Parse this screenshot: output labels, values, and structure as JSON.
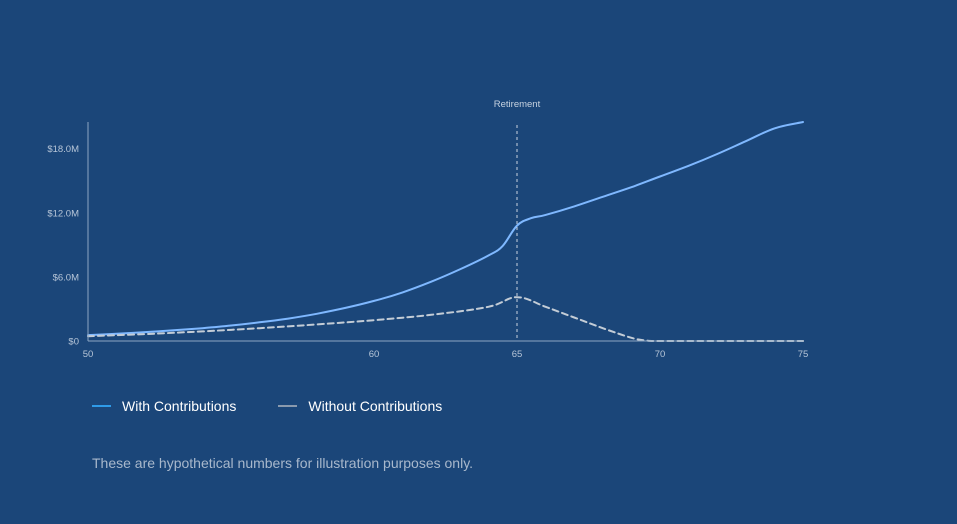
{
  "colors": {
    "background": "#1b4679",
    "with_contributions": "#7fb8ff",
    "without_contributions": "#c3ccd6",
    "axis": "#8ea7c4",
    "legend_with": "#2f9be8",
    "legend_without": "#8a9aae"
  },
  "legend": {
    "with_label": "With Contributions",
    "without_label": "Without Contributions"
  },
  "footnote": "These are hypothetical numbers for illustration purposes only.",
  "chart_data": {
    "type": "line",
    "title": "",
    "xlabel": "",
    "ylabel": "",
    "xlim": [
      50,
      75
    ],
    "ylim": [
      0,
      20.5
    ],
    "x_ticks": [
      50,
      60,
      65,
      70,
      75
    ],
    "x_tick_labels": [
      "50",
      "60",
      "65",
      "70",
      "75"
    ],
    "y_ticks": [
      0,
      6,
      12,
      18
    ],
    "y_tick_labels": [
      "$0",
      "$6.0M",
      "$12.0M",
      "$18.0M"
    ],
    "y_unit": "$M",
    "grid": false,
    "legend_position": "bottom-left",
    "annotations": [
      {
        "type": "vertical-line",
        "x": 65,
        "label": "Retirement",
        "style": "dashed"
      }
    ],
    "series": [
      {
        "name": "With Contributions",
        "style": "solid",
        "x": [
          50,
          51,
          52,
          53,
          54,
          55,
          56,
          57,
          58,
          59,
          60,
          61,
          62,
          63,
          64,
          64.5,
          65,
          65.5,
          66,
          67,
          68,
          69,
          70,
          71,
          72,
          73,
          74,
          75
        ],
        "y": [
          0.55,
          0.68,
          0.83,
          1.0,
          1.2,
          1.45,
          1.75,
          2.1,
          2.55,
          3.1,
          3.75,
          4.55,
          5.55,
          6.7,
          8.0,
          8.9,
          10.8,
          11.5,
          11.8,
          12.6,
          13.5,
          14.4,
          15.4,
          16.4,
          17.5,
          18.7,
          19.9,
          20.5
        ]
      },
      {
        "name": "Without Contributions",
        "style": "dashed",
        "x": [
          50,
          52,
          54,
          56,
          58,
          60,
          62,
          64,
          65,
          66,
          67,
          68,
          69,
          69.5,
          70,
          72,
          75
        ],
        "y": [
          0.45,
          0.65,
          0.9,
          1.2,
          1.55,
          1.95,
          2.45,
          3.2,
          4.1,
          3.2,
          2.2,
          1.2,
          0.3,
          0.05,
          0.0,
          0.0,
          0.0
        ]
      }
    ]
  }
}
